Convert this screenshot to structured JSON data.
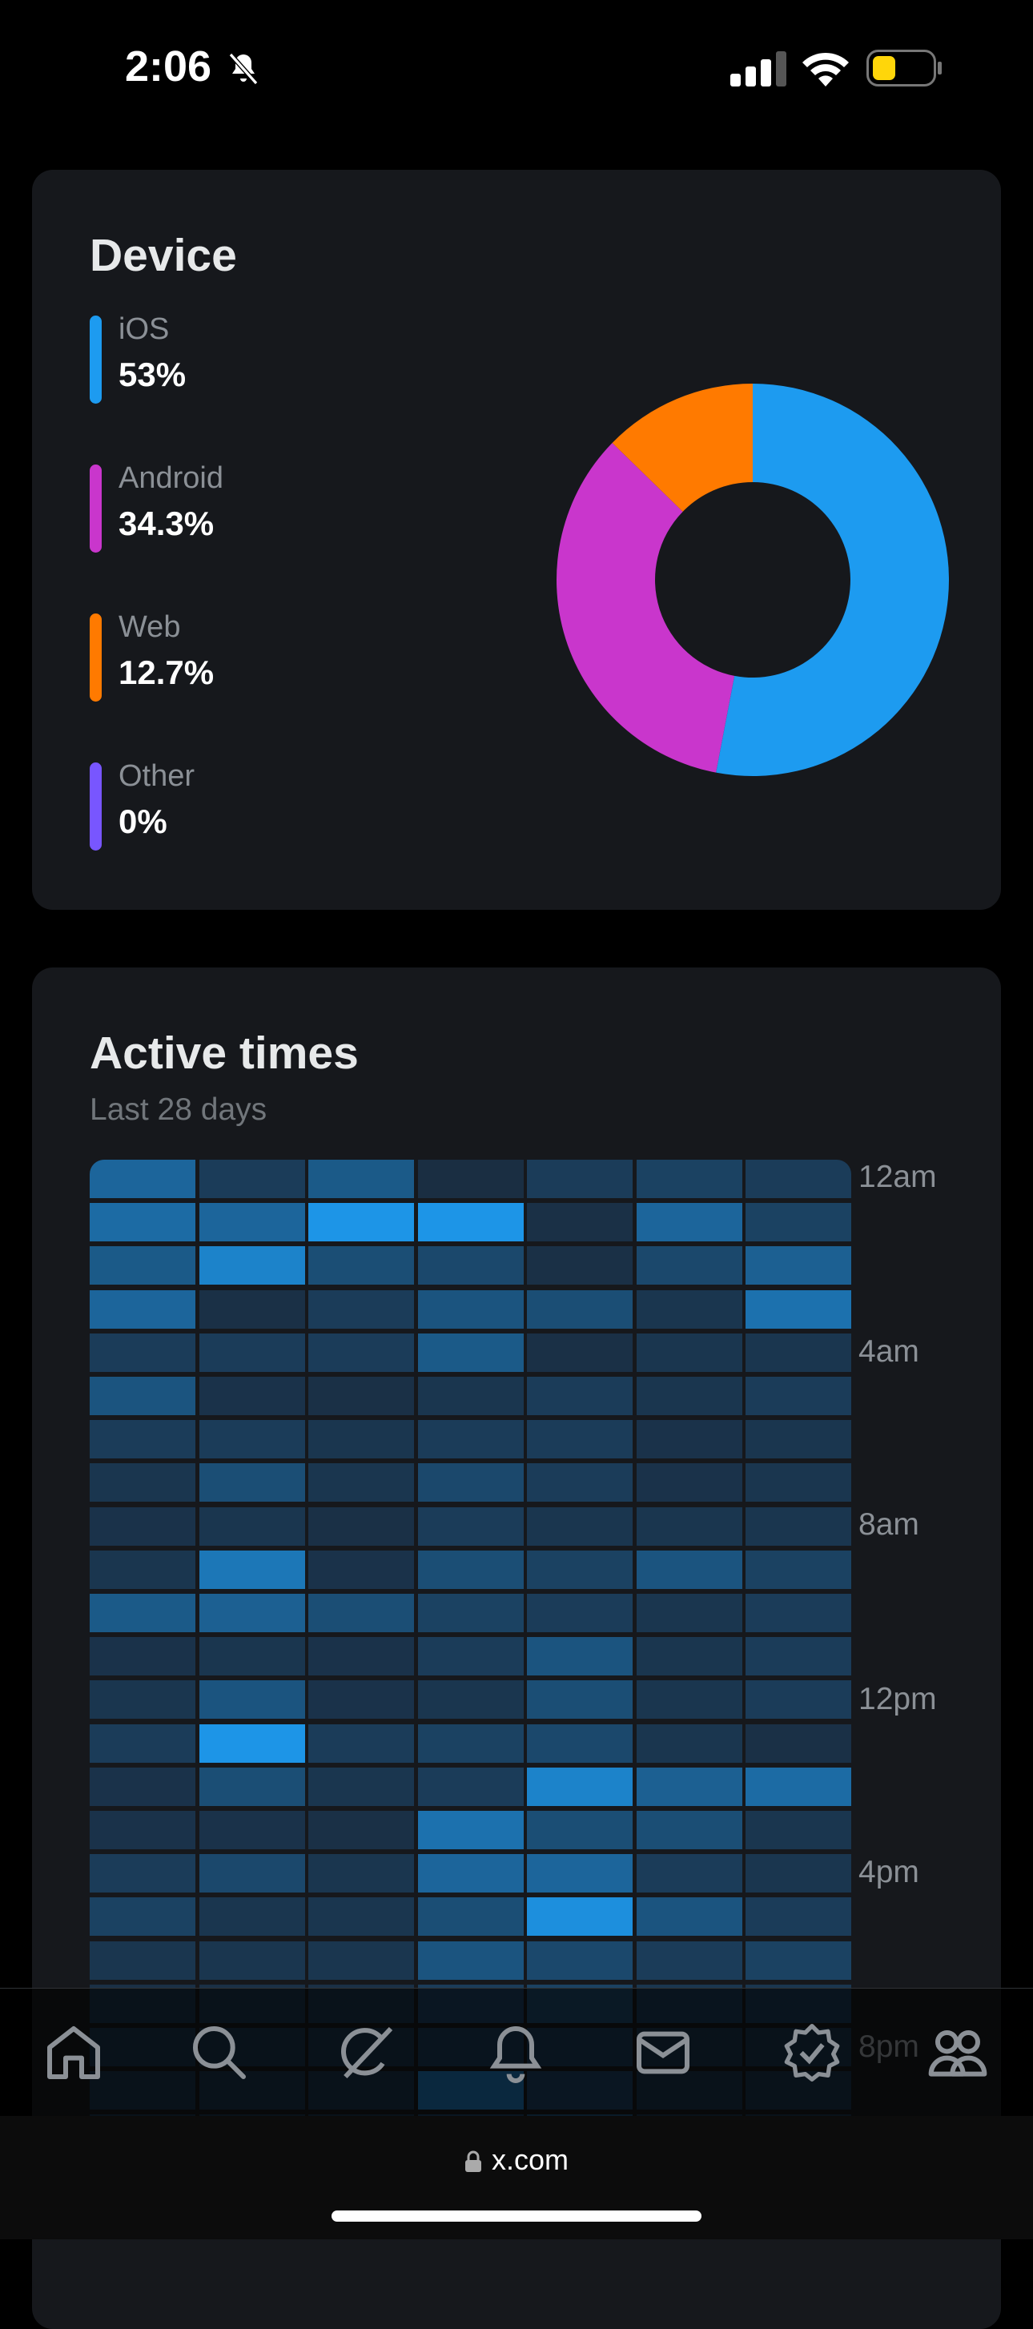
{
  "status_bar": {
    "time": "2:06"
  },
  "device_card": {
    "title": "Device",
    "items": [
      {
        "label": "iOS",
        "value": "53%",
        "percent": 53,
        "color": "#1d9bf0"
      },
      {
        "label": "Android",
        "value": "34.3%",
        "percent": 34.3,
        "color": "#c936cc"
      },
      {
        "label": "Web",
        "value": "12.7%",
        "percent": 12.7,
        "color": "#ff7a00"
      },
      {
        "label": "Other",
        "value": "0%",
        "percent": 0,
        "color": "#7856ff"
      }
    ]
  },
  "active_card": {
    "title": "Active times",
    "subtitle": "Last 28 days",
    "hour_labels": [
      "12am",
      "4am",
      "8am",
      "12pm",
      "4pm",
      "8pm"
    ],
    "heatmap_intensity": [
      [
        0.55,
        0.2,
        0.45,
        0.08,
        0.2,
        0.25,
        0.2
      ],
      [
        0.6,
        0.55,
        0.95,
        0.95,
        0.1,
        0.55,
        0.25
      ],
      [
        0.45,
        0.8,
        0.35,
        0.3,
        0.1,
        0.3,
        0.5
      ],
      [
        0.55,
        0.1,
        0.2,
        0.4,
        0.35,
        0.15,
        0.65
      ],
      [
        0.2,
        0.2,
        0.2,
        0.45,
        0.1,
        0.15,
        0.15
      ],
      [
        0.4,
        0.12,
        0.1,
        0.15,
        0.2,
        0.15,
        0.2
      ],
      [
        0.2,
        0.2,
        0.15,
        0.2,
        0.2,
        0.12,
        0.15
      ],
      [
        0.15,
        0.35,
        0.15,
        0.3,
        0.2,
        0.12,
        0.15
      ],
      [
        0.12,
        0.15,
        0.1,
        0.2,
        0.15,
        0.15,
        0.15
      ],
      [
        0.15,
        0.7,
        0.12,
        0.35,
        0.25,
        0.4,
        0.25
      ],
      [
        0.45,
        0.5,
        0.35,
        0.25,
        0.2,
        0.15,
        0.2
      ],
      [
        0.12,
        0.15,
        0.12,
        0.2,
        0.4,
        0.15,
        0.2
      ],
      [
        0.15,
        0.4,
        0.12,
        0.15,
        0.35,
        0.15,
        0.2
      ],
      [
        0.2,
        0.95,
        0.2,
        0.25,
        0.3,
        0.15,
        0.1
      ],
      [
        0.12,
        0.35,
        0.15,
        0.2,
        0.8,
        0.5,
        0.6
      ],
      [
        0.12,
        0.12,
        0.1,
        0.65,
        0.35,
        0.35,
        0.15
      ],
      [
        0.2,
        0.3,
        0.15,
        0.55,
        0.55,
        0.2,
        0.15
      ],
      [
        0.25,
        0.15,
        0.15,
        0.35,
        0.9,
        0.4,
        0.2
      ],
      [
        0.15,
        0.15,
        0.15,
        0.4,
        0.3,
        0.2,
        0.25
      ],
      [
        0.1,
        0.1,
        0.1,
        0.2,
        0.25,
        0.15,
        0.15
      ],
      [
        0.1,
        0.1,
        0.1,
        0.15,
        0.15,
        0.1,
        0.1
      ],
      [
        0.1,
        0.1,
        0.1,
        0.6,
        0.2,
        0.1,
        0.1
      ],
      [
        0.1,
        0.1,
        0.1,
        0.2,
        0.3,
        0.1,
        0.1
      ]
    ],
    "color_low": "#1a2433",
    "color_high": "#1d9bf0"
  },
  "tab_bar": {
    "icons": [
      "home-icon",
      "search-icon",
      "grok-icon",
      "notifications-icon",
      "messages-icon",
      "verified-icon",
      "communities-icon"
    ]
  },
  "url_bar": {
    "url": "x.com"
  }
}
